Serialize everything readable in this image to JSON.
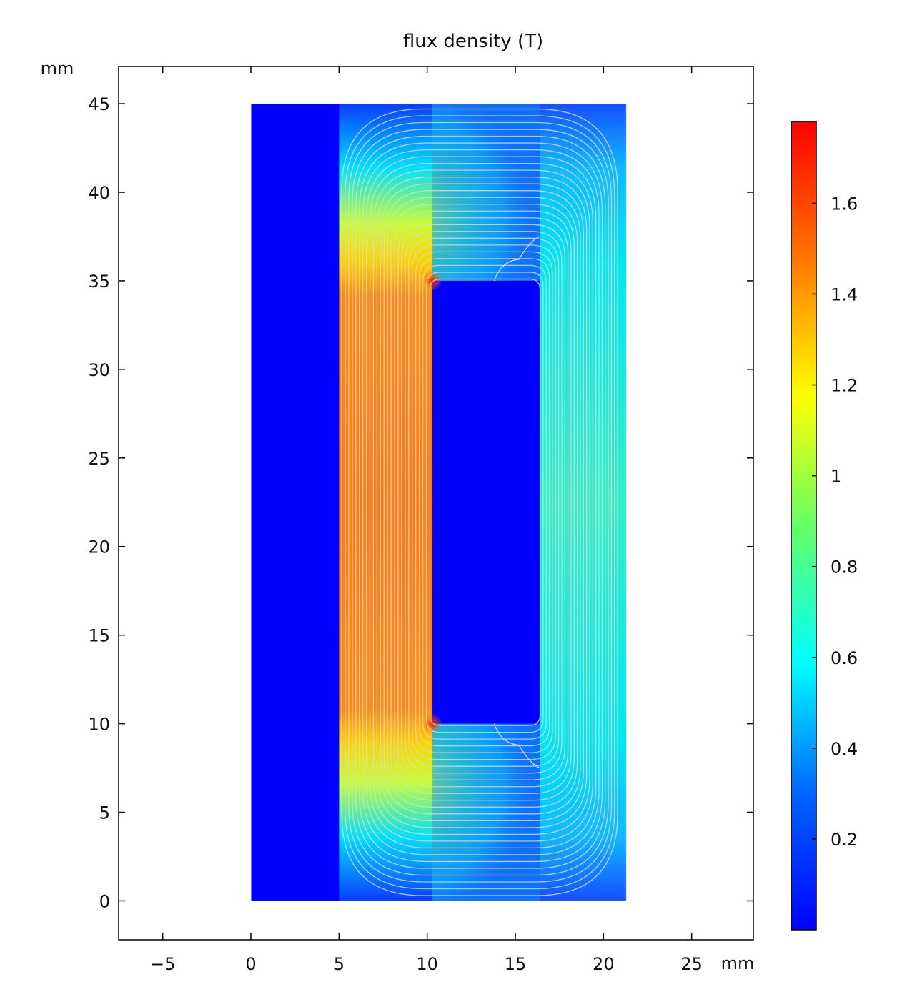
{
  "chart_data": {
    "type": "heatmap",
    "title": "flux density (T)",
    "xlabel": "mm",
    "ylabel": "mm",
    "xlim": [
      -7.5,
      28.5
    ],
    "ylim": [
      -2.2,
      47.1
    ],
    "xticks": [
      -5,
      0,
      5,
      10,
      15,
      20,
      25
    ],
    "yticks": [
      0,
      5,
      10,
      15,
      20,
      25,
      30,
      35,
      40,
      45
    ],
    "xtick_labels": [
      "−5",
      "0",
      "5",
      "10",
      "15",
      "20",
      "25"
    ],
    "ytick_labels": [
      "0",
      "5",
      "10",
      "15",
      "20",
      "25",
      "30",
      "35",
      "40",
      "45"
    ],
    "colorbar": {
      "min": 0.0,
      "max": 1.78,
      "ticks": [
        0.2,
        0.4,
        0.6,
        0.8,
        1,
        1.2,
        1.4,
        1.6
      ],
      "tick_labels": [
        "0.2",
        "0.4",
        "0.6",
        "0.8",
        "1",
        "1.2",
        "1.4",
        "1.6"
      ],
      "colormap": "rainbow (blue-cyan-green-yellow-red)"
    },
    "domain": {
      "x": [
        0,
        21.3
      ],
      "y": [
        0,
        45
      ]
    },
    "regions": [
      {
        "name": "inner column",
        "x": [
          0,
          5
        ],
        "y": [
          0,
          45
        ],
        "value": 0.0
      },
      {
        "name": "core left leg",
        "x": [
          5,
          10.3
        ],
        "y": [
          10,
          35
        ],
        "value": 1.45
      },
      {
        "name": "air slot",
        "x": [
          10.3,
          16.4
        ],
        "y": [
          10,
          35
        ],
        "value": 0.0
      },
      {
        "name": "core right leg",
        "x": [
          16.4,
          21.3
        ],
        "y": [
          10,
          35
        ],
        "value": 0.62
      },
      {
        "name": "corner peak",
        "x": 10.3,
        "y": 35,
        "value": 1.78
      },
      {
        "name": "corner peak",
        "x": 10.3,
        "y": 10,
        "value": 1.78
      }
    ],
    "streamline_color": "#d8d8d8",
    "grid": false
  }
}
